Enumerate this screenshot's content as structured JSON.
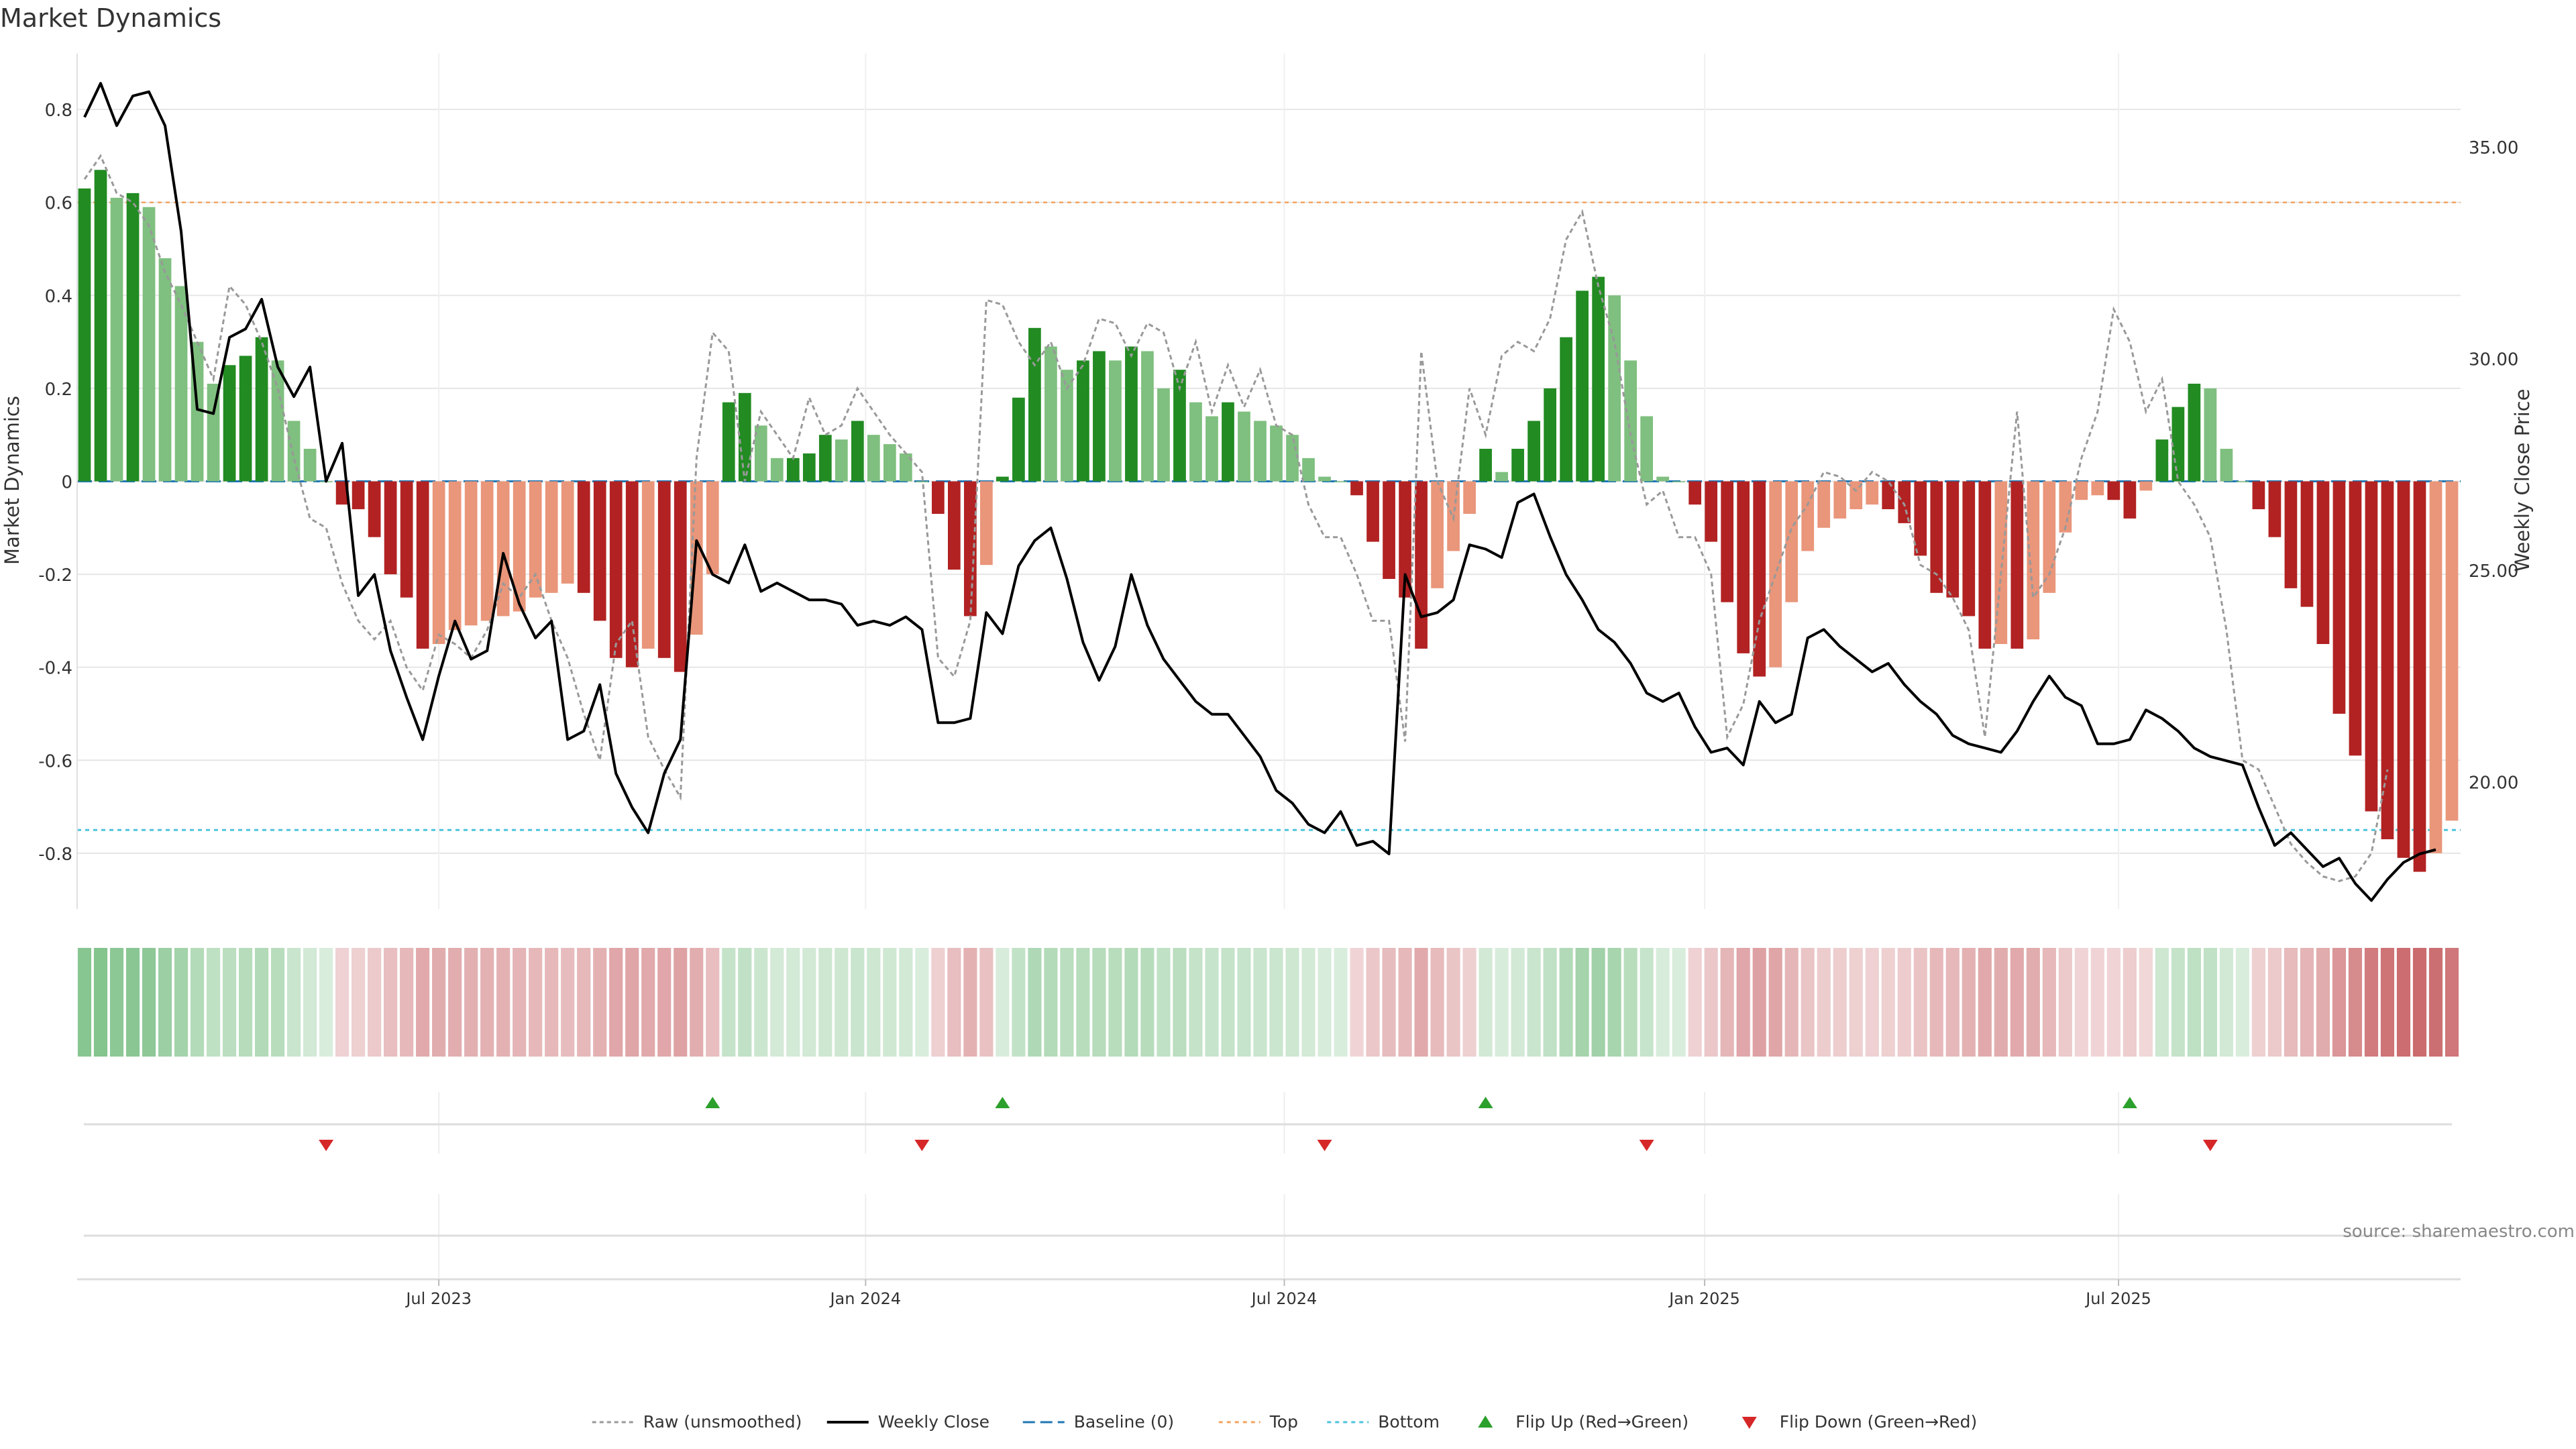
{
  "chart_data": {
    "type": "bar",
    "title": "Market Dynamics",
    "ylabel": "Market Dynamics",
    "y2label": "Weekly Close Price",
    "source": "source: sharemaestro.com",
    "ylim": [
      -0.92,
      0.92
    ],
    "y2lim": [
      17.0,
      37.2
    ],
    "yticks": [
      {
        "v": 0.8,
        "label": "0.8"
      },
      {
        "v": 0.6,
        "label": "0.6"
      },
      {
        "v": 0.4,
        "label": "0.4"
      },
      {
        "v": 0.2,
        "label": "0.2"
      },
      {
        "v": 0,
        "label": "0"
      },
      {
        "v": -0.2,
        "label": "-0.2"
      },
      {
        "v": -0.4,
        "label": "-0.4"
      },
      {
        "v": -0.6,
        "label": "-0.6"
      },
      {
        "v": -0.8,
        "label": "-0.8"
      }
    ],
    "y2ticks": [
      {
        "v": 35,
        "label": "35.00"
      },
      {
        "v": 30,
        "label": "30.00"
      },
      {
        "v": 25,
        "label": "25.00"
      },
      {
        "v": 20,
        "label": "20.00"
      }
    ],
    "xticks": [
      {
        "i": 22,
        "label": "Jul 2023"
      },
      {
        "i": 48.5,
        "label": "Jan 2024"
      },
      {
        "i": 74.5,
        "label": "Jul 2024"
      },
      {
        "i": 100.6,
        "label": "Jan 2025"
      },
      {
        "i": 126.3,
        "label": "Jul 2025"
      }
    ],
    "top_level": 0.6,
    "bottom_level": -0.75,
    "baseline": 0,
    "bars": [
      0.63,
      0.67,
      0.61,
      0.62,
      0.59,
      0.48,
      0.42,
      0.3,
      0.21,
      0.25,
      0.27,
      0.31,
      0.26,
      0.13,
      0.07,
      0.0,
      -0.05,
      -0.06,
      -0.12,
      -0.2,
      -0.25,
      -0.36,
      -0.35,
      -0.32,
      -0.31,
      -0.3,
      -0.29,
      -0.28,
      -0.25,
      -0.24,
      -0.22,
      -0.24,
      -0.3,
      -0.38,
      -0.4,
      -0.36,
      -0.38,
      -0.41,
      -0.33,
      -0.2,
      0.17,
      0.19,
      0.12,
      0.05,
      0.05,
      0.06,
      0.1,
      0.09,
      0.13,
      0.1,
      0.08,
      0.06,
      0.0,
      -0.07,
      -0.19,
      -0.29,
      -0.18,
      0.01,
      0.18,
      0.33,
      0.29,
      0.24,
      0.26,
      0.28,
      0.26,
      0.29,
      0.28,
      0.2,
      0.24,
      0.17,
      0.14,
      0.17,
      0.15,
      0.13,
      0.12,
      0.1,
      0.05,
      0.01,
      0.0,
      -0.03,
      -0.13,
      -0.21,
      -0.25,
      -0.36,
      -0.23,
      -0.15,
      -0.07,
      0.07,
      0.02,
      0.07,
      0.13,
      0.2,
      0.31,
      0.41,
      0.44,
      0.4,
      0.26,
      0.14,
      0.01,
      0.0,
      -0.05,
      -0.13,
      -0.26,
      -0.37,
      -0.42,
      -0.4,
      -0.26,
      -0.15,
      -0.1,
      -0.08,
      -0.06,
      -0.05,
      -0.06,
      -0.09,
      -0.16,
      -0.24,
      -0.25,
      -0.29,
      -0.36,
      -0.35,
      -0.36,
      -0.34,
      -0.24,
      -0.11,
      -0.04,
      -0.03,
      -0.04,
      -0.08,
      -0.02,
      0.09,
      0.16,
      0.21,
      0.2,
      0.07,
      0.0,
      -0.06,
      -0.12,
      -0.23,
      -0.27,
      -0.35,
      -0.5,
      -0.59,
      -0.71,
      -0.77,
      -0.81,
      -0.84,
      -0.8,
      -0.73
    ],
    "raw": [
      0.65,
      0.7,
      0.62,
      0.6,
      0.55,
      0.45,
      0.38,
      0.3,
      0.22,
      0.42,
      0.38,
      0.3,
      0.2,
      0.05,
      -0.08,
      -0.1,
      -0.22,
      -0.3,
      -0.34,
      -0.3,
      -0.4,
      -0.45,
      -0.33,
      -0.35,
      -0.38,
      -0.32,
      -0.22,
      -0.25,
      -0.2,
      -0.3,
      -0.38,
      -0.5,
      -0.6,
      -0.35,
      -0.3,
      -0.55,
      -0.62,
      -0.68,
      0.05,
      0.32,
      0.28,
      0.0,
      0.15,
      0.1,
      0.05,
      0.18,
      0.1,
      0.12,
      0.2,
      0.15,
      0.1,
      0.06,
      0.02,
      -0.38,
      -0.42,
      -0.3,
      0.39,
      0.38,
      0.3,
      0.25,
      0.3,
      0.2,
      0.25,
      0.35,
      0.34,
      0.27,
      0.34,
      0.32,
      0.2,
      0.3,
      0.15,
      0.25,
      0.16,
      0.24,
      0.12,
      0.1,
      -0.05,
      -0.12,
      -0.12,
      -0.2,
      -0.3,
      -0.3,
      -0.56,
      0.28,
      0.0,
      -0.08,
      0.2,
      0.1,
      0.27,
      0.3,
      0.28,
      0.35,
      0.52,
      0.58,
      0.42,
      0.3,
      0.1,
      -0.05,
      -0.02,
      -0.12,
      -0.12,
      -0.2,
      -0.55,
      -0.48,
      -0.3,
      -0.2,
      -0.1,
      -0.05,
      0.02,
      0.01,
      -0.02,
      0.02,
      0.0,
      -0.05,
      -0.18,
      -0.2,
      -0.25,
      -0.32,
      -0.55,
      -0.2,
      0.15,
      -0.25,
      -0.2,
      -0.1,
      0.05,
      0.15,
      0.37,
      0.3,
      0.15,
      0.22,
      0.0,
      -0.05,
      -0.12,
      -0.32,
      -0.6,
      -0.62,
      -0.7,
      -0.78,
      -0.82,
      -0.85,
      -0.86,
      -0.85,
      -0.8,
      -0.62
    ],
    "price": [
      35.7,
      36.5,
      35.5,
      36.2,
      36.3,
      35.5,
      33.0,
      28.8,
      28.7,
      30.5,
      30.7,
      31.4,
      29.8,
      29.1,
      29.8,
      27.1,
      28.0,
      24.4,
      24.9,
      23.1,
      22.0,
      21.0,
      22.5,
      23.8,
      22.9,
      23.1,
      25.4,
      24.2,
      23.4,
      23.8,
      21.0,
      21.2,
      22.3,
      20.2,
      19.4,
      18.8,
      20.2,
      21.0,
      25.7,
      24.9,
      24.7,
      25.6,
      24.5,
      24.7,
      24.5,
      24.3,
      24.3,
      24.2,
      23.7,
      23.8,
      23.7,
      23.9,
      23.6,
      21.4,
      21.4,
      21.5,
      24.0,
      23.5,
      25.1,
      25.7,
      26.0,
      24.8,
      23.3,
      22.4,
      23.2,
      24.9,
      23.7,
      22.9,
      22.4,
      21.9,
      21.6,
      21.6,
      21.1,
      20.6,
      19.8,
      19.5,
      19.0,
      18.8,
      19.3,
      18.5,
      18.6,
      18.3,
      24.9,
      23.9,
      24.0,
      24.3,
      25.6,
      25.5,
      25.3,
      26.6,
      26.8,
      25.8,
      24.9,
      24.3,
      23.6,
      23.3,
      22.8,
      22.1,
      21.9,
      22.1,
      21.3,
      20.7,
      20.8,
      20.4,
      21.9,
      21.4,
      21.6,
      23.4,
      23.6,
      23.2,
      22.9,
      22.6,
      22.8,
      22.3,
      21.9,
      21.6,
      21.1,
      20.9,
      20.8,
      20.7,
      21.2,
      21.9,
      22.5,
      22.0,
      21.8,
      20.9,
      20.9,
      21.0,
      21.7,
      21.5,
      21.2,
      20.8,
      20.6,
      20.5,
      20.4,
      19.4,
      18.5,
      18.8,
      18.4,
      18.0,
      18.2,
      17.6,
      17.2,
      17.7,
      18.1,
      18.3,
      18.4
    ],
    "flip_up": [
      39,
      57,
      87,
      127
    ],
    "flip_down": [
      15,
      52,
      77,
      97,
      132
    ],
    "colors": {
      "pos_strong": "#228b22",
      "pos_weak": "#7fbf7f",
      "neg_strong": "#b22222",
      "neg_weak": "#e9967a",
      "price_line": "#000000",
      "raw_line": "#999999",
      "baseline": "#1f77b4",
      "top": "#f4a460",
      "bottom": "#4fc3dc",
      "flip_up": "#2ca02c",
      "flip_down": "#d62728"
    },
    "legend": [
      {
        "type": "raw",
        "label": "Raw (unsmoothed)"
      },
      {
        "type": "close",
        "label": "Weekly Close"
      },
      {
        "type": "baseline",
        "label": "Baseline (0)"
      },
      {
        "type": "top",
        "label": "Top"
      },
      {
        "type": "bottom",
        "label": "Bottom"
      },
      {
        "type": "up",
        "label": "Flip Up (Red→Green)"
      },
      {
        "type": "down",
        "label": "Flip Down (Green→Red)"
      }
    ],
    "legend_placement": "bottom-center",
    "grid": true
  }
}
